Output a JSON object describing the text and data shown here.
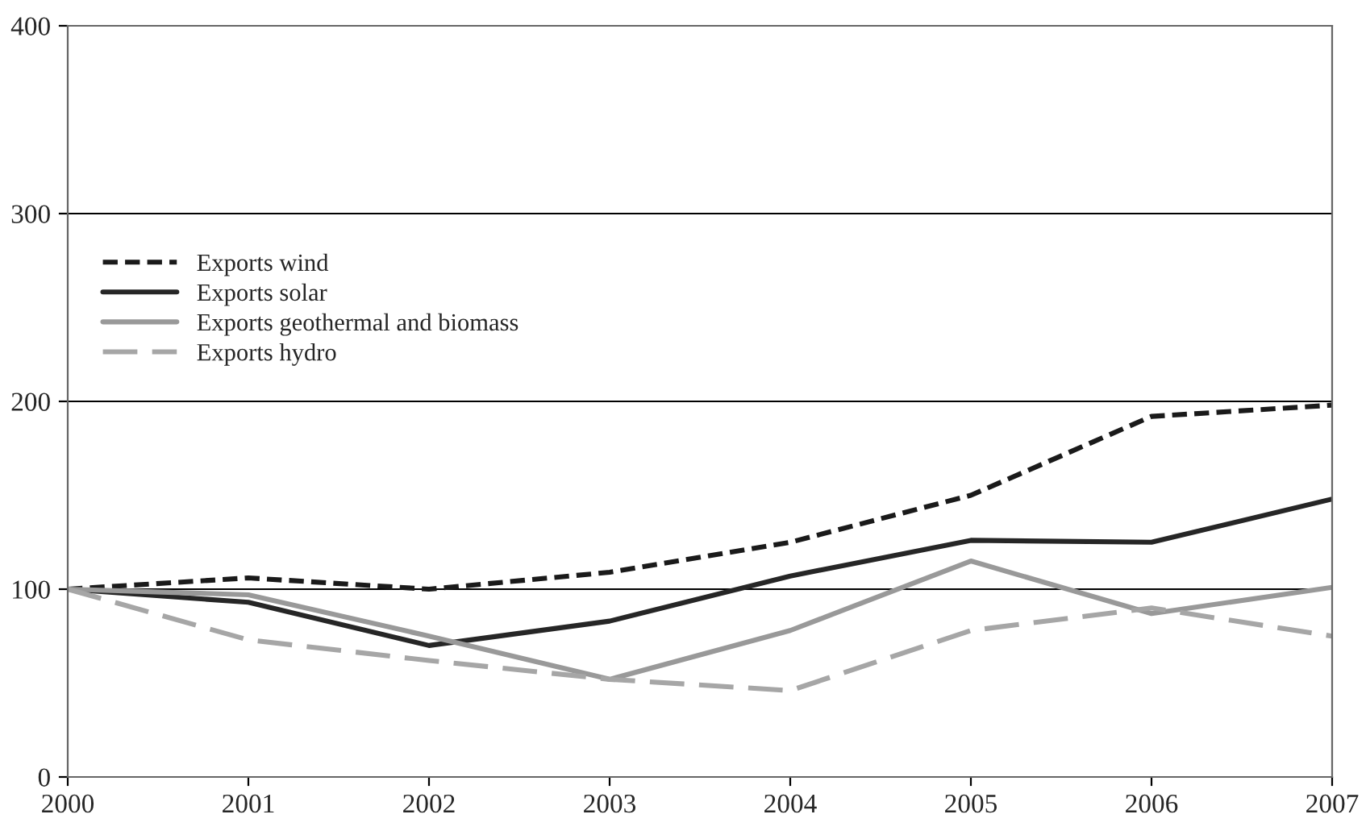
{
  "chart_data": {
    "type": "line",
    "x": [
      2000,
      2001,
      2002,
      2003,
      2004,
      2005,
      2006,
      2007
    ],
    "series": [
      {
        "name": "Exports wind",
        "color": "#1a1a1a",
        "line_style": "dashed",
        "values": [
          100,
          106,
          100,
          109,
          125,
          150,
          192,
          198
        ]
      },
      {
        "name": "Exports solar",
        "color": "#262626",
        "line_style": "solid",
        "values": [
          100,
          93,
          70,
          83,
          107,
          126,
          125,
          148
        ]
      },
      {
        "name": "Exports geothermal and biomass",
        "color": "#999999",
        "line_style": "solid",
        "values": [
          100,
          97,
          75,
          52,
          78,
          115,
          87,
          101
        ]
      },
      {
        "name": "Exports hydro",
        "color": "#a6a6a6",
        "line_style": "dashed",
        "values": [
          100,
          73,
          62,
          52,
          46,
          78,
          90,
          75
        ]
      }
    ],
    "xlim": [
      2000,
      2007
    ],
    "xticks": [
      2000,
      2001,
      2002,
      2003,
      2004,
      2005,
      2006,
      2007
    ],
    "ylim": [
      0,
      400
    ],
    "yticks": [
      0,
      100,
      200,
      300,
      400
    ],
    "grid": "y",
    "legend": "top left",
    "marker": "none"
  }
}
